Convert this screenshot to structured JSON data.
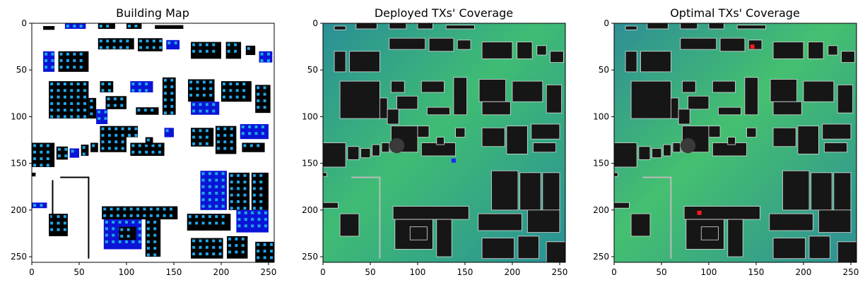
{
  "figure": {
    "panels": [
      {
        "title": "Building Map"
      },
      {
        "title": "Deployed TXs' Coverage"
      },
      {
        "title": "Optimal TXs' Coverage"
      }
    ]
  },
  "chart_data": [
    {
      "type": "heatmap",
      "title": "Building Map",
      "xlim": [
        0,
        256
      ],
      "ylim": [
        256,
        0
      ],
      "xticks": [
        0,
        50,
        100,
        150,
        200,
        250
      ],
      "yticks": [
        0,
        50,
        100,
        150,
        200,
        250
      ],
      "grid": false,
      "colors": {
        "background": "#ffffff",
        "building": "#000000",
        "building_alt": "#0a14d6",
        "marker": "#1ea7e8"
      }
    },
    {
      "type": "heatmap",
      "title": "Deployed TXs' Coverage",
      "xlim": [
        0,
        256
      ],
      "ylim": [
        256,
        0
      ],
      "xticks": [
        0,
        50,
        100,
        150,
        200,
        250
      ],
      "yticks": [
        0,
        50,
        100,
        150,
        200,
        250
      ],
      "grid": false,
      "transmitters": [
        {
          "x": 138,
          "y": 147
        }
      ],
      "colors": {
        "coverage_high": "#3fbc74",
        "coverage_low": "#2a8f96",
        "building": "#161616",
        "transmitter": "#1d27ff"
      }
    },
    {
      "type": "heatmap",
      "title": "Optimal TXs' Coverage",
      "xlim": [
        0,
        256
      ],
      "ylim": [
        256,
        0
      ],
      "xticks": [
        0,
        50,
        100,
        150,
        200,
        250
      ],
      "yticks": [
        0,
        50,
        100,
        150,
        200,
        250
      ],
      "grid": false,
      "transmitters": [
        {
          "x": 90,
          "y": 203
        },
        {
          "x": 146,
          "y": 25
        }
      ],
      "colors": {
        "coverage_high": "#45c070",
        "coverage_low": "#2e8f95",
        "building": "#161616",
        "transmitter": "#ff1b1b"
      }
    }
  ]
}
